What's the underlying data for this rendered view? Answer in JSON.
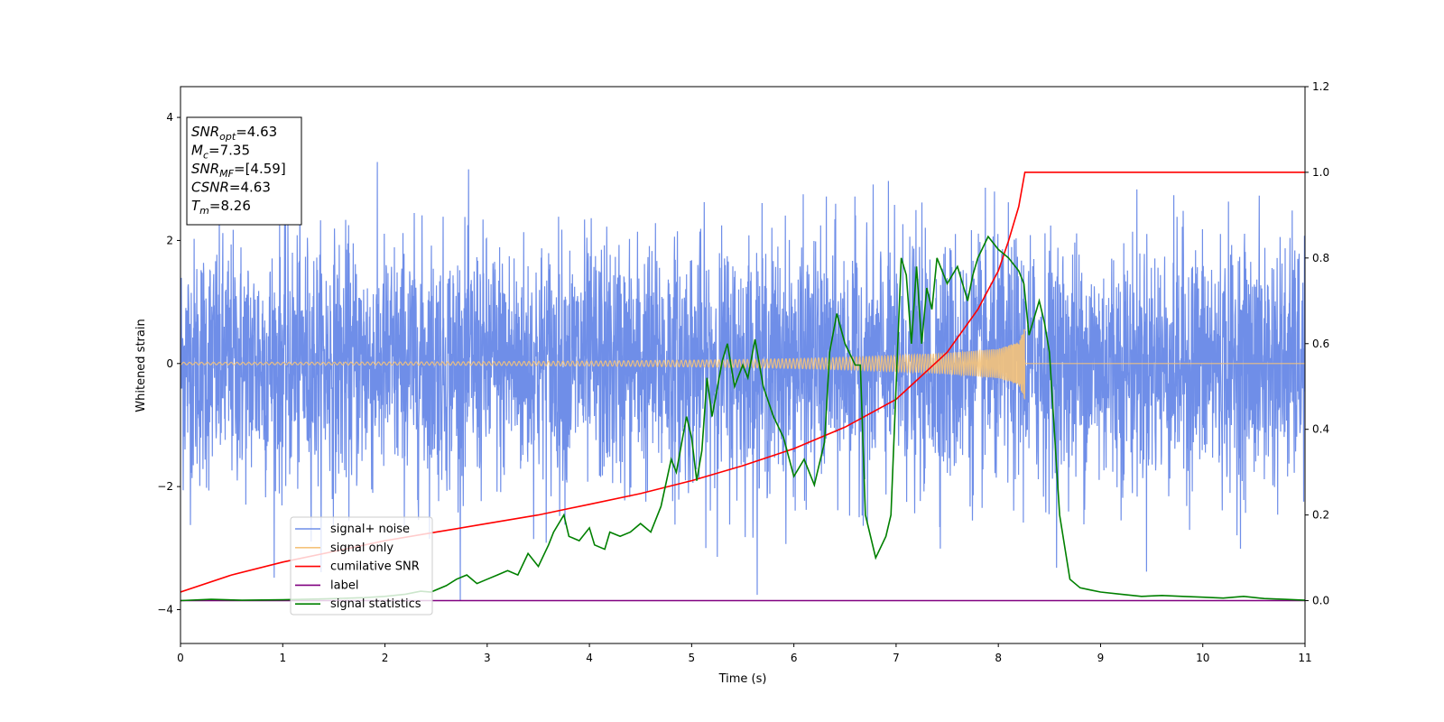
{
  "chart_data": {
    "type": "line",
    "xlabel": "Time (s)",
    "ylabel_left": "Whitened strain",
    "xlim": [
      0,
      11
    ],
    "ylim_left": [
      -4.55,
      4.5
    ],
    "ylim_right": [
      -0.1,
      1.2
    ],
    "xticks": [
      0,
      1,
      2,
      3,
      4,
      5,
      6,
      7,
      8,
      9,
      10,
      11
    ],
    "yticks_left": [
      -4,
      -2,
      0,
      2,
      4
    ],
    "yticks_right": [
      0.0,
      0.2,
      0.4,
      0.6,
      0.8,
      1.0,
      1.2
    ],
    "grid": false,
    "legend_position": "lower-left",
    "info_box": {
      "lines": [
        {
          "sym": "SNR",
          "sub": "opt",
          "val": "=4.63"
        },
        {
          "sym": "M",
          "sub": "c",
          "val": "=7.35"
        },
        {
          "sym": "SNR",
          "sub": "MF",
          "val": "=[4.59]"
        },
        {
          "sym": "CSNR",
          "sub": "",
          "val": "=4.63"
        },
        {
          "sym": "T",
          "sub": "m",
          "val": "=8.26"
        }
      ]
    },
    "series": [
      {
        "name": "signal+ noise",
        "axis": "left",
        "color": "#6f8ee8",
        "description_stats": {
          "std": 1.0,
          "x_range": [
            0,
            11
          ]
        }
      },
      {
        "name": "signal only",
        "axis": "left",
        "color": "#f5c37a",
        "envelope": {
          "x": [
            0,
            1,
            2,
            3,
            4,
            5,
            5.5,
            6,
            6.5,
            7,
            7.5,
            8,
            8.2,
            8.26
          ],
          "amplitude": [
            0.02,
            0.02,
            0.025,
            0.03,
            0.04,
            0.055,
            0.065,
            0.08,
            0.1,
            0.13,
            0.17,
            0.24,
            0.35,
            0.6
          ],
          "merger_time": 8.26
        }
      },
      {
        "name": "cumilative SNR",
        "axis": "right",
        "color": "#ff0000",
        "x": [
          0,
          0.5,
          1,
          1.5,
          2,
          2.5,
          3,
          3.5,
          4,
          4.5,
          5,
          5.5,
          6,
          6.5,
          7,
          7.5,
          7.8,
          8.0,
          8.1,
          8.2,
          8.26,
          8.3,
          11
        ],
        "values": [
          0.02,
          0.06,
          0.09,
          0.115,
          0.14,
          0.16,
          0.18,
          0.2,
          0.225,
          0.25,
          0.28,
          0.315,
          0.355,
          0.405,
          0.47,
          0.58,
          0.68,
          0.77,
          0.84,
          0.92,
          1.0,
          1.0,
          1.0
        ]
      },
      {
        "name": "label",
        "axis": "right",
        "color": "#800080",
        "x": [
          0,
          11
        ],
        "values": [
          0,
          0
        ]
      },
      {
        "name": "signal statistics",
        "axis": "right",
        "color": "#008000",
        "x": [
          0,
          0.3,
          0.6,
          1.0,
          1.4,
          1.8,
          2.0,
          2.2,
          2.35,
          2.45,
          2.6,
          2.7,
          2.8,
          2.9,
          3.0,
          3.1,
          3.2,
          3.3,
          3.4,
          3.5,
          3.6,
          3.65,
          3.75,
          3.8,
          3.9,
          4.0,
          4.05,
          4.15,
          4.2,
          4.3,
          4.4,
          4.5,
          4.6,
          4.7,
          4.8,
          4.85,
          4.95,
          5.0,
          5.05,
          5.1,
          5.15,
          5.2,
          5.3,
          5.35,
          5.42,
          5.5,
          5.55,
          5.62,
          5.7,
          5.8,
          5.9,
          6.0,
          6.1,
          6.2,
          6.3,
          6.35,
          6.42,
          6.5,
          6.6,
          6.65,
          6.7,
          6.8,
          6.9,
          6.95,
          7.0,
          7.05,
          7.1,
          7.15,
          7.2,
          7.25,
          7.3,
          7.35,
          7.4,
          7.5,
          7.6,
          7.7,
          7.75,
          7.8,
          7.9,
          8.0,
          8.1,
          8.2,
          8.25,
          8.3,
          8.4,
          8.45,
          8.5,
          8.6,
          8.7,
          8.8,
          8.9,
          9.0,
          9.2,
          9.4,
          9.6,
          9.8,
          10.0,
          10.2,
          10.4,
          10.6,
          10.8,
          11.0
        ],
        "values": [
          0,
          0.003,
          0.001,
          0.002,
          0.004,
          0.007,
          0.01,
          0.015,
          0.022,
          0.02,
          0.035,
          0.05,
          0.06,
          0.04,
          0.05,
          0.06,
          0.07,
          0.06,
          0.11,
          0.08,
          0.13,
          0.16,
          0.2,
          0.15,
          0.14,
          0.17,
          0.13,
          0.12,
          0.16,
          0.15,
          0.16,
          0.18,
          0.16,
          0.22,
          0.33,
          0.3,
          0.43,
          0.38,
          0.28,
          0.35,
          0.52,
          0.43,
          0.56,
          0.6,
          0.5,
          0.55,
          0.52,
          0.61,
          0.5,
          0.43,
          0.38,
          0.29,
          0.33,
          0.27,
          0.37,
          0.58,
          0.67,
          0.6,
          0.55,
          0.55,
          0.2,
          0.1,
          0.15,
          0.2,
          0.5,
          0.8,
          0.76,
          0.6,
          0.78,
          0.6,
          0.73,
          0.68,
          0.8,
          0.74,
          0.78,
          0.7,
          0.76,
          0.8,
          0.85,
          0.82,
          0.8,
          0.77,
          0.74,
          0.62,
          0.7,
          0.65,
          0.58,
          0.2,
          0.05,
          0.03,
          0.025,
          0.02,
          0.015,
          0.01,
          0.012,
          0.01,
          0.008,
          0.006,
          0.01,
          0.005,
          0.003,
          0.001
        ]
      }
    ]
  }
}
